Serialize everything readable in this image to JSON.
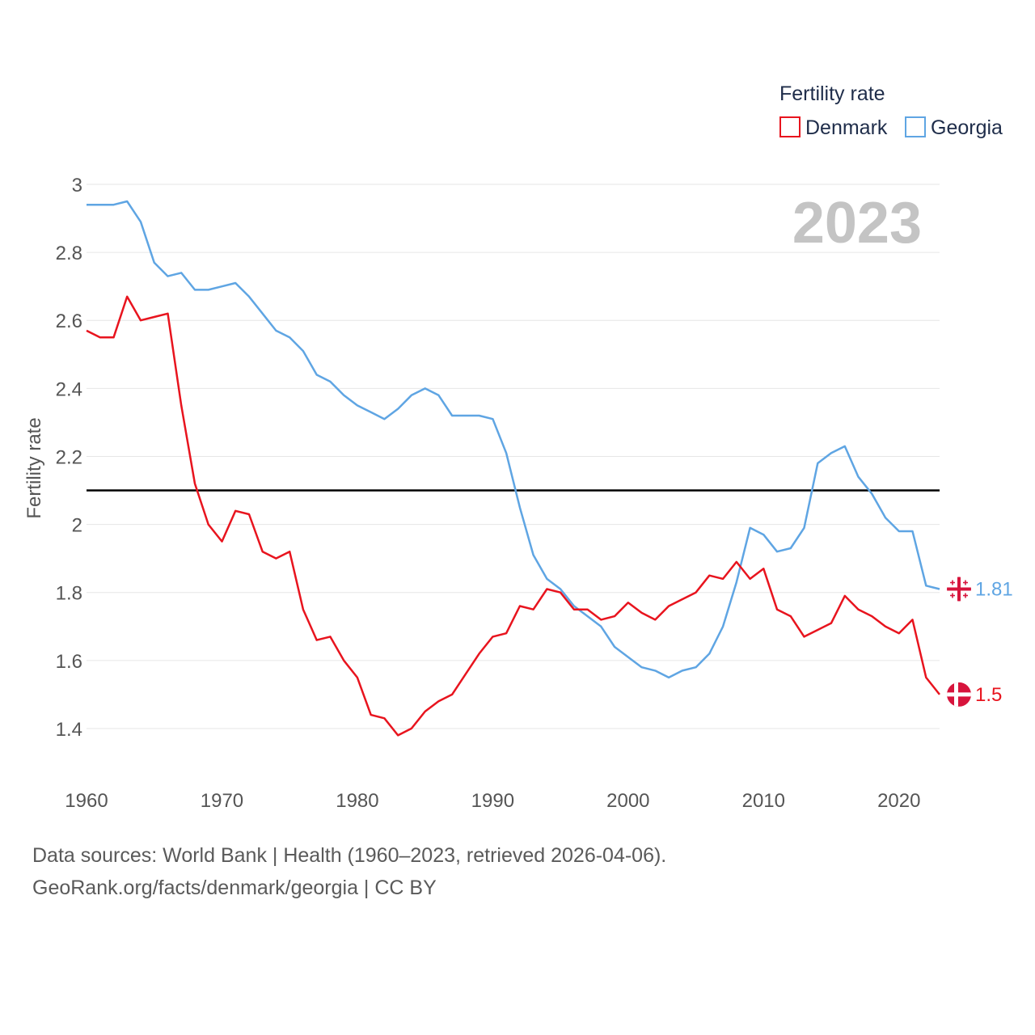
{
  "chart_data": {
    "type": "line",
    "legend_title": "Fertility rate",
    "ylabel": "Fertility rate",
    "year_stamp": "2023",
    "ylim": [
      1.3,
      3.0
    ],
    "xlim": [
      1960,
      2023
    ],
    "y_ticks": [
      "3",
      "2.8",
      "2.6",
      "2.4",
      "2.2",
      "2",
      "1.8",
      "1.6",
      "1.4"
    ],
    "y_tick_values": [
      3.0,
      2.8,
      2.6,
      2.4,
      2.2,
      2.0,
      1.8,
      1.6,
      1.4
    ],
    "x_ticks": [
      "1960",
      "1970",
      "1980",
      "1990",
      "2000",
      "2010",
      "2020"
    ],
    "x_tick_values": [
      1960,
      1970,
      1980,
      1990,
      2000,
      2010,
      2020
    ],
    "reference_line": 2.1,
    "x": [
      1960,
      1961,
      1962,
      1963,
      1964,
      1965,
      1966,
      1967,
      1968,
      1969,
      1970,
      1971,
      1972,
      1973,
      1974,
      1975,
      1976,
      1977,
      1978,
      1979,
      1980,
      1981,
      1982,
      1983,
      1984,
      1985,
      1986,
      1987,
      1988,
      1989,
      1990,
      1991,
      1992,
      1993,
      1994,
      1995,
      1996,
      1997,
      1998,
      1999,
      2000,
      2001,
      2002,
      2003,
      2004,
      2005,
      2006,
      2007,
      2008,
      2009,
      2010,
      2011,
      2012,
      2013,
      2014,
      2015,
      2016,
      2017,
      2018,
      2019,
      2020,
      2021,
      2022,
      2023
    ],
    "series": [
      {
        "name": "Denmark",
        "color": "#e8141e",
        "end_label": "1.5",
        "values": [
          2.57,
          2.55,
          2.55,
          2.67,
          2.6,
          2.61,
          2.62,
          2.35,
          2.12,
          2.0,
          1.95,
          2.04,
          2.03,
          1.92,
          1.9,
          1.92,
          1.75,
          1.66,
          1.67,
          1.6,
          1.55,
          1.44,
          1.43,
          1.38,
          1.4,
          1.45,
          1.48,
          1.5,
          1.56,
          1.62,
          1.67,
          1.68,
          1.76,
          1.75,
          1.81,
          1.8,
          1.75,
          1.75,
          1.72,
          1.73,
          1.77,
          1.74,
          1.72,
          1.76,
          1.78,
          1.8,
          1.85,
          1.84,
          1.89,
          1.84,
          1.87,
          1.75,
          1.73,
          1.67,
          1.69,
          1.71,
          1.79,
          1.75,
          1.73,
          1.7,
          1.68,
          1.72,
          1.55,
          1.5
        ]
      },
      {
        "name": "Georgia",
        "color": "#5fa5e3",
        "end_label": "1.81",
        "values": [
          2.94,
          2.94,
          2.94,
          2.95,
          2.89,
          2.77,
          2.73,
          2.74,
          2.69,
          2.69,
          2.7,
          2.71,
          2.67,
          2.62,
          2.57,
          2.55,
          2.51,
          2.44,
          2.42,
          2.38,
          2.35,
          2.33,
          2.31,
          2.34,
          2.38,
          2.4,
          2.38,
          2.32,
          2.32,
          2.32,
          2.31,
          2.21,
          2.05,
          1.91,
          1.84,
          1.81,
          1.76,
          1.73,
          1.7,
          1.64,
          1.61,
          1.58,
          1.57,
          1.55,
          1.57,
          1.58,
          1.62,
          1.7,
          1.83,
          1.99,
          1.97,
          1.92,
          1.93,
          1.99,
          2.18,
          2.21,
          2.23,
          2.14,
          2.09,
          2.02,
          1.98,
          1.98,
          1.82,
          1.81
        ]
      }
    ]
  },
  "footer": {
    "line1": "Data sources: World Bank | Health (1960–2023, retrieved 2026-04-06).",
    "line2": "GeoRank.org/facts/denmark/georgia | CC BY"
  },
  "colors": {
    "denmark_flag_red": "#d7143c",
    "georgia_flag_red": "#d7143c",
    "grid": "#e6e6e6",
    "reference": "#000000"
  }
}
